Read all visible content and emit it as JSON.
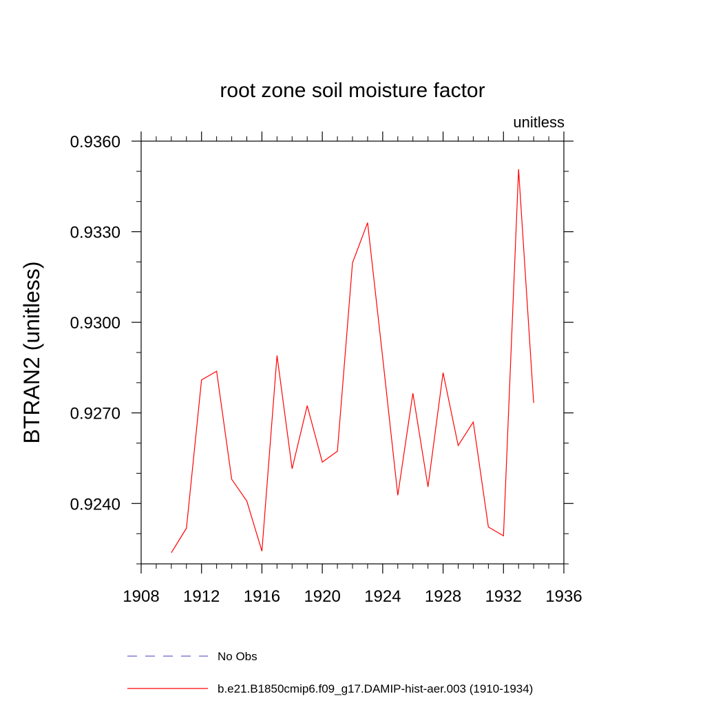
{
  "chart_data": {
    "type": "line",
    "title": "root zone soil moisture factor",
    "units_label": "unitless",
    "ylabel": "BTRAN2  (unitless)",
    "xlabel": "",
    "xlim": [
      1908,
      1936
    ],
    "ylim": [
      0.922,
      0.936
    ],
    "x_major_ticks": [
      1908,
      1912,
      1916,
      1920,
      1924,
      1928,
      1932,
      1936
    ],
    "x_tick_labels": [
      "1908",
      "1912",
      "1916",
      "1920",
      "1924",
      "1928",
      "1932",
      "1936"
    ],
    "y_major_ticks": [
      0.924,
      0.927,
      0.93,
      0.933,
      0.936
    ],
    "y_tick_labels": [
      "0.9240",
      "0.9270",
      "0.9300",
      "0.9330",
      "0.9360"
    ],
    "grid": false,
    "legend_position": "bottom",
    "series": [
      {
        "name": "b.e21.B1850cmip6.f09_g17.DAMIP-hist-aer.003 (1910-1934)",
        "color": "#ff0000",
        "style": "solid",
        "x": [
          1910,
          1911,
          1912,
          1913,
          1914,
          1915,
          1916,
          1917,
          1918,
          1919,
          1920,
          1921,
          1922,
          1923,
          1924,
          1925,
          1926,
          1927,
          1928,
          1929,
          1930,
          1931,
          1932,
          1933,
          1934
        ],
        "values": [
          0.92237,
          0.92318,
          0.92809,
          0.92838,
          0.9248,
          0.92408,
          0.92242,
          0.9289,
          0.92515,
          0.92724,
          0.92537,
          0.92573,
          0.93197,
          0.9333,
          0.92883,
          0.92427,
          0.92765,
          0.92455,
          0.92833,
          0.92592,
          0.9267,
          0.92322,
          0.92293,
          0.93507,
          0.92733
        ]
      }
    ],
    "legend": [
      {
        "label": "No Obs",
        "color": "#6666cc",
        "style": "dashed"
      },
      {
        "label": "b.e21.B1850cmip6.f09_g17.DAMIP-hist-aer.003 (1910-1934)",
        "color": "#ff0000",
        "style": "solid"
      }
    ]
  }
}
